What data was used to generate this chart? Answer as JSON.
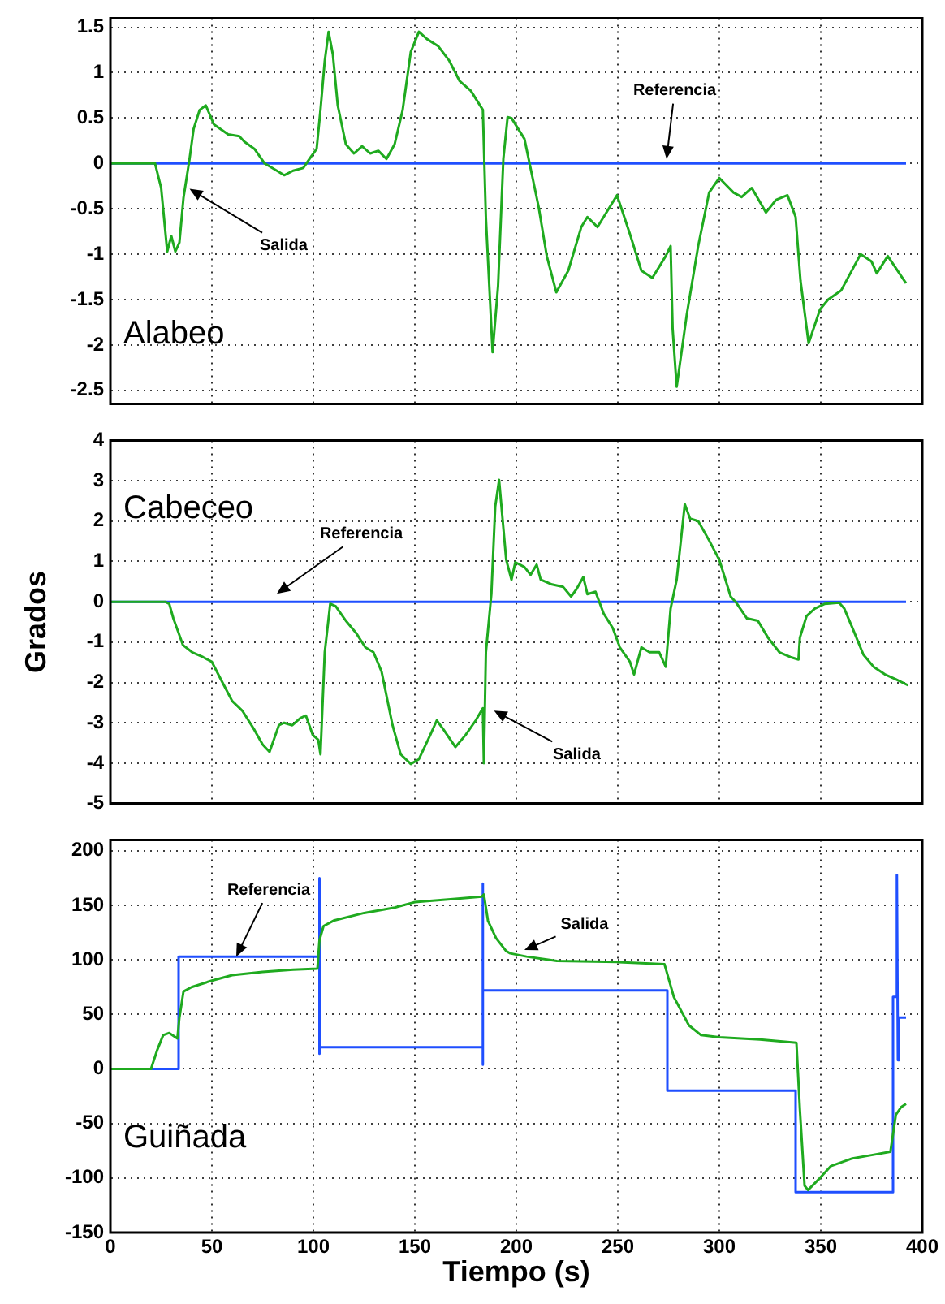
{
  "chart_data": [
    {
      "type": "line",
      "title": "Alabeo",
      "xlim": [
        0,
        400
      ],
      "xticks": [
        0,
        50,
        100,
        150,
        200,
        250,
        300,
        350,
        400
      ],
      "ylim": [
        -2.65,
        1.6
      ],
      "yticks": [
        -2.5,
        -2,
        -1.5,
        -1,
        -0.5,
        0,
        0.5,
        1,
        1.5
      ],
      "grid": true,
      "tick_labels": "y",
      "annotations": [
        {
          "text": "Salida",
          "x": 39,
          "y": -0.28
        },
        {
          "text": "Referencia",
          "x": 274,
          "y": 0.05
        }
      ],
      "series": [
        {
          "color": "#1faa1f",
          "x": [
            0,
            22,
            25,
            28,
            30,
            32,
            34,
            36,
            39,
            41,
            44,
            47,
            51,
            58,
            63.5,
            66,
            71,
            76,
            82,
            85.6,
            90,
            95,
            99,
            101.6,
            103.5,
            105.6,
            107.5,
            109.6,
            112,
            116,
            120,
            124,
            128,
            132,
            136,
            140,
            144,
            148,
            152,
            156,
            161.6,
            167,
            172,
            177.6,
            183.5,
            185,
            188.3,
            191,
            193.6,
            195.7,
            197.6,
            204,
            211,
            215,
            219.7,
            225.6,
            232,
            235,
            240,
            249.6,
            256,
            261.6,
            267,
            273.6,
            276,
            277,
            279,
            284,
            289.6,
            295,
            300,
            307,
            311,
            316,
            323,
            328,
            333.6,
            337.6,
            340,
            344,
            349.6,
            353.6,
            360,
            369.6,
            375,
            377.6,
            383,
            392
          ],
          "values": [
            0,
            0,
            -0.27,
            -0.97,
            -0.8,
            -0.97,
            -0.87,
            -0.38,
            0.05,
            0.38,
            0.59,
            0.64,
            0.43,
            0.32,
            0.3,
            0.24,
            0.16,
            0,
            -0.08,
            -0.13,
            -0.08,
            -0.05,
            0.08,
            0.16,
            0.59,
            1.13,
            1.45,
            1.2,
            0.64,
            0.21,
            0.11,
            0.19,
            0.11,
            0.14,
            0.05,
            0.21,
            0.59,
            1.23,
            1.45,
            1.37,
            1.29,
            1.13,
            0.91,
            0.8,
            0.59,
            -0.6,
            -2.08,
            -1.35,
            0.05,
            0.51,
            0.5,
            0.27,
            -0.48,
            -1.02,
            -1.42,
            -1.18,
            -0.7,
            -0.59,
            -0.7,
            -0.35,
            -0.78,
            -1.18,
            -1.26,
            -1.02,
            -0.91,
            -1.82,
            -2.46,
            -1.66,
            -0.91,
            -0.32,
            -0.16,
            -0.32,
            -0.37,
            -0.27,
            -0.54,
            -0.4,
            -0.35,
            -0.59,
            -1.29,
            -1.98,
            -1.61,
            -1.5,
            -1.4,
            -1,
            -1.08,
            -1.21,
            -1.02,
            -1.32
          ]
        },
        {
          "color": "#1f4fff",
          "x": [
            0,
            392
          ],
          "values": [
            0,
            0
          ]
        }
      ]
    },
    {
      "type": "line",
      "title": "Cabeceo",
      "ylabel": "Grados",
      "xlim": [
        0,
        400
      ],
      "xticks": [
        0,
        50,
        100,
        150,
        200,
        250,
        300,
        350,
        400
      ],
      "ylim": [
        -5,
        4
      ],
      "yticks": [
        -5,
        -4,
        -3,
        -2,
        -1,
        0,
        1,
        2,
        3,
        4
      ],
      "grid": true,
      "tick_labels": "y",
      "annotations": [
        {
          "text": "Referencia",
          "x": 82,
          "y": 0.2
        },
        {
          "text": "Salida",
          "x": 189,
          "y": -2.7
        }
      ],
      "series": [
        {
          "color": "#1faa1f",
          "x": [
            0,
            27,
            29,
            31,
            33.6,
            35.7,
            40.3,
            45.6,
            50,
            55,
            60,
            65,
            71,
            75,
            78.4,
            83,
            85.6,
            89.6,
            93.6,
            96.3,
            99.7,
            102.4,
            103.5,
            105.6,
            108.3,
            111,
            116,
            121,
            125.6,
            129.6,
            133.6,
            139,
            143,
            148,
            152,
            157.6,
            160.8,
            164.3,
            170,
            175,
            180,
            183.5,
            184,
            185,
            187.7,
            189.6,
            191.5,
            195,
            197.6,
            199.5,
            204,
            207,
            210,
            212,
            217.6,
            223,
            227,
            229.6,
            233,
            235,
            239,
            243,
            247.5,
            251,
            256,
            258,
            261.6,
            265.6,
            270.4,
            273.6,
            276,
            279,
            283,
            285.6,
            289.6,
            295,
            300,
            305.6,
            308,
            313.6,
            319,
            324,
            329.6,
            335,
            339,
            339.7,
            343,
            347,
            352,
            359,
            361.6,
            365.6,
            371,
            376,
            381.6,
            387,
            393
          ],
          "values": [
            0,
            0,
            -0.05,
            -0.41,
            -0.77,
            -1.07,
            -1.25,
            -1.37,
            -1.49,
            -1.98,
            -2.46,
            -2.7,
            -3.18,
            -3.54,
            -3.72,
            -3.06,
            -3,
            -3.06,
            -2.88,
            -2.82,
            -3.3,
            -3.42,
            -3.78,
            -1.25,
            -0.05,
            -0.11,
            -0.47,
            -0.77,
            -1.13,
            -1.25,
            -1.73,
            -3.06,
            -3.78,
            -4.02,
            -3.9,
            -3.3,
            -2.94,
            -3.18,
            -3.6,
            -3.3,
            -2.94,
            -2.64,
            -4,
            -1.25,
            0.19,
            2.36,
            3.02,
            1.04,
            0.55,
            0.98,
            0.86,
            0.67,
            0.92,
            0.55,
            0.43,
            0.37,
            0.13,
            0.31,
            0.61,
            0.19,
            0.25,
            -0.29,
            -0.65,
            -1.13,
            -1.49,
            -1.8,
            -1.13,
            -1.25,
            -1.25,
            -1.61,
            -0.17,
            0.55,
            2.42,
            2.06,
            2,
            1.52,
            1.04,
            0.13,
            0,
            -0.41,
            -0.47,
            -0.89,
            -1.25,
            -1.37,
            -1.43,
            -0.89,
            -0.35,
            -0.17,
            -0.05,
            -0.02,
            -0.17,
            -0.65,
            -1.31,
            -1.61,
            -1.8,
            -1.92,
            -2.07
          ]
        },
        {
          "color": "#1f4fff",
          "x": [
            0,
            392
          ],
          "values": [
            0,
            0
          ]
        }
      ]
    },
    {
      "type": "line",
      "title": "Guiñada",
      "xlabel": "Tiempo (s)",
      "xlim": [
        0,
        400
      ],
      "xticks": [
        0,
        50,
        100,
        150,
        200,
        250,
        300,
        350,
        400
      ],
      "ylim": [
        -150,
        210
      ],
      "yticks": [
        -150,
        -100,
        -50,
        0,
        50,
        100,
        150,
        200
      ],
      "grid": true,
      "annotations": [
        {
          "text": "Referencia",
          "x": 62,
          "y": 103
        },
        {
          "text": "Salida",
          "x": 204,
          "y": 109
        }
      ],
      "series": [
        {
          "color": "#1faa1f",
          "x": [
            0,
            20,
            23,
            26,
            29,
            33,
            34,
            36,
            40,
            50,
            60,
            75,
            90,
            102,
            103,
            105,
            110,
            125,
            140,
            150,
            170,
            183,
            184,
            186,
            190,
            195,
            197,
            205,
            220,
            250,
            273,
            277.6,
            285,
            291,
            300,
            320,
            338,
            339.7,
            342,
            343.7,
            349.6,
            355,
            365.6,
            375,
            384.3,
            387,
            389.6,
            392
          ],
          "values": [
            0,
            0,
            17,
            31,
            33,
            28,
            47,
            71,
            75,
            81,
            86,
            89,
            91,
            92,
            118,
            131,
            136,
            143,
            148,
            153,
            156,
            158,
            160,
            136,
            120,
            108,
            106,
            103,
            99,
            98,
            96,
            66,
            40,
            31,
            29,
            27,
            24,
            -37,
            -107,
            -111,
            -100,
            -89,
            -82,
            -79,
            -76,
            -42,
            -35,
            -32
          ]
        },
        {
          "color": "#1f4fff",
          "x": [
            0,
            33.6,
            33.6,
            103,
            103,
            103,
            103,
            183.5,
            183.5,
            183.5,
            183.5,
            274.4,
            274.4,
            337.6,
            337.6,
            385.6,
            385.6,
            387.5,
            387.5,
            388,
            388.5,
            392
          ],
          "values": [
            0,
            0,
            103,
            103,
            175,
            14,
            20,
            20,
            170,
            4,
            72,
            72,
            -20,
            -20,
            -113,
            -113,
            66,
            66,
            178,
            8,
            47,
            47
          ]
        }
      ]
    }
  ]
}
